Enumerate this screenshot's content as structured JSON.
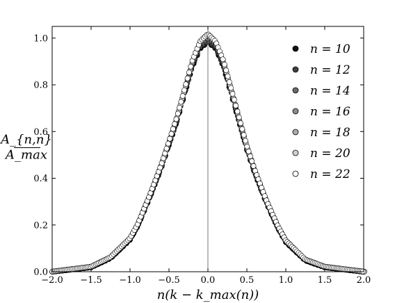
{
  "chart_data": {
    "type": "scatter",
    "title": "",
    "xlabel": "n(k − k_max(n))",
    "ylabel_num": "A_{n,n}",
    "ylabel_den": "A_max",
    "xlim": [
      -2.0,
      2.0
    ],
    "ylim": [
      0.0,
      1.05
    ],
    "xticks": [
      "−2.0",
      "−1.5",
      "−1.0",
      "−0.5",
      "0.0",
      "0.5",
      "1.0",
      "1.5",
      "2.0"
    ],
    "xtick_values": [
      -2.0,
      -1.5,
      -1.0,
      -0.5,
      0.0,
      0.5,
      1.0,
      1.5,
      2.0
    ],
    "yticks": [
      "0.0",
      "0.2",
      "0.4",
      "0.6",
      "0.8",
      "1.0"
    ],
    "ytick_values": [
      0.0,
      0.2,
      0.4,
      0.6,
      0.8,
      1.0
    ],
    "grid": false,
    "vertical_line_at": 0.0,
    "legend_position": "top-right",
    "series": [
      {
        "name": "n = 10",
        "color": "#111111",
        "n": 10
      },
      {
        "name": "n = 12",
        "color": "#404040",
        "n": 12
      },
      {
        "name": "n = 14",
        "color": "#6a6a6a",
        "n": 14
      },
      {
        "name": "n = 16",
        "color": "#8c8c8c",
        "n": 16
      },
      {
        "name": "n = 18",
        "color": "#acacac",
        "n": 18
      },
      {
        "name": "n = 20",
        "color": "#cfcfcf",
        "n": 20
      },
      {
        "name": "n = 22",
        "color": "#ffffff",
        "n": 22
      }
    ],
    "curve": {
      "description_shape": "bell",
      "peak_y": 1.0,
      "sample_points": [
        {
          "x": -2.0,
          "y": 0.0
        },
        {
          "x": -1.5,
          "y": 0.02
        },
        {
          "x": -1.25,
          "y": 0.06
        },
        {
          "x": -1.0,
          "y": 0.14
        },
        {
          "x": -0.9,
          "y": 0.2
        },
        {
          "x": -0.75,
          "y": 0.32
        },
        {
          "x": -0.6,
          "y": 0.45
        },
        {
          "x": -0.5,
          "y": 0.55
        },
        {
          "x": -0.4,
          "y": 0.65
        },
        {
          "x": -0.3,
          "y": 0.77
        },
        {
          "x": -0.2,
          "y": 0.89
        },
        {
          "x": -0.1,
          "y": 0.97
        },
        {
          "x": 0.0,
          "y": 1.0
        },
        {
          "x": 0.1,
          "y": 0.97
        },
        {
          "x": 0.2,
          "y": 0.89
        },
        {
          "x": 0.3,
          "y": 0.77
        },
        {
          "x": 0.4,
          "y": 0.65
        },
        {
          "x": 0.5,
          "y": 0.53
        },
        {
          "x": 0.6,
          "y": 0.43
        },
        {
          "x": 0.75,
          "y": 0.3
        },
        {
          "x": 0.9,
          "y": 0.19
        },
        {
          "x": 1.0,
          "y": 0.13
        },
        {
          "x": 1.25,
          "y": 0.05
        },
        {
          "x": 1.5,
          "y": 0.02
        },
        {
          "x": 2.0,
          "y": 0.0
        }
      ]
    }
  }
}
